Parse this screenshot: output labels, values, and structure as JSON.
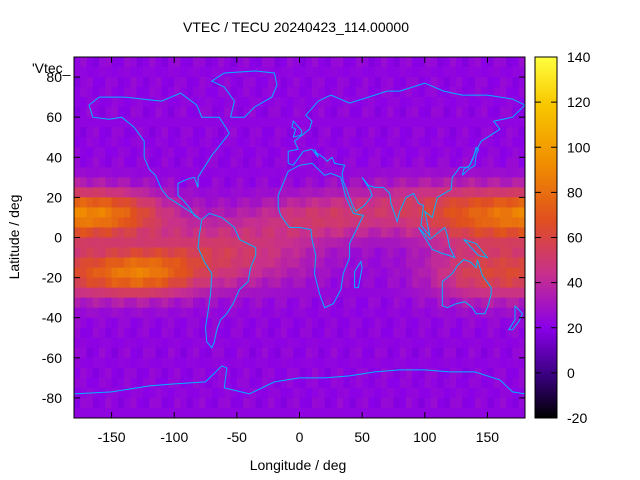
{
  "chart_data": {
    "type": "heatmap",
    "title": "VTEC / TECU 20240423_114.00000",
    "xlabel": "Longitude / deg",
    "ylabel": "Latitude / deg",
    "series_label": "'Vtec_",
    "xlim": [
      -180,
      180
    ],
    "ylim": [
      -90,
      90
    ],
    "xticks": [
      -150,
      -100,
      -50,
      0,
      50,
      100,
      150
    ],
    "yticks": [
      -80,
      -60,
      -40,
      -20,
      0,
      20,
      40,
      60,
      80
    ],
    "colorbar": {
      "range": [
        -20,
        140
      ],
      "ticks": [
        -20,
        0,
        20,
        40,
        60,
        80,
        100,
        120,
        140
      ]
    },
    "grid": false,
    "colors": {
      "coastline": "#00b4ff",
      "palette": [
        "#000000",
        "#3a0080",
        "#8a00e8",
        "#c8308c",
        "#e0501e",
        "#f08c00",
        "#f8c800",
        "#ffff40"
      ]
    },
    "features": [
      {
        "lon": -155,
        "lat": 12,
        "lon_sigma": 35,
        "lat_sigma": 8,
        "value": 50
      },
      {
        "lon": -130,
        "lat": -18,
        "lon_sigma": 32,
        "lat_sigma": 8,
        "value": 55
      },
      {
        "lon": -60,
        "lat": -8,
        "lon_sigma": 50,
        "lat_sigma": 12,
        "value": 30
      },
      {
        "lon": 20,
        "lat": 10,
        "lon_sigma": 40,
        "lat_sigma": 8,
        "value": 25
      },
      {
        "lon": 145,
        "lat": 10,
        "lon_sigma": 40,
        "lat_sigma": 10,
        "value": 40
      },
      {
        "lon": 150,
        "lat": -18,
        "lon_sigma": 35,
        "lat_sigma": 10,
        "value": 35
      },
      {
        "lon": 90,
        "lat": 18,
        "lon_sigma": 40,
        "lat_sigma": 8,
        "value": 15
      }
    ]
  }
}
